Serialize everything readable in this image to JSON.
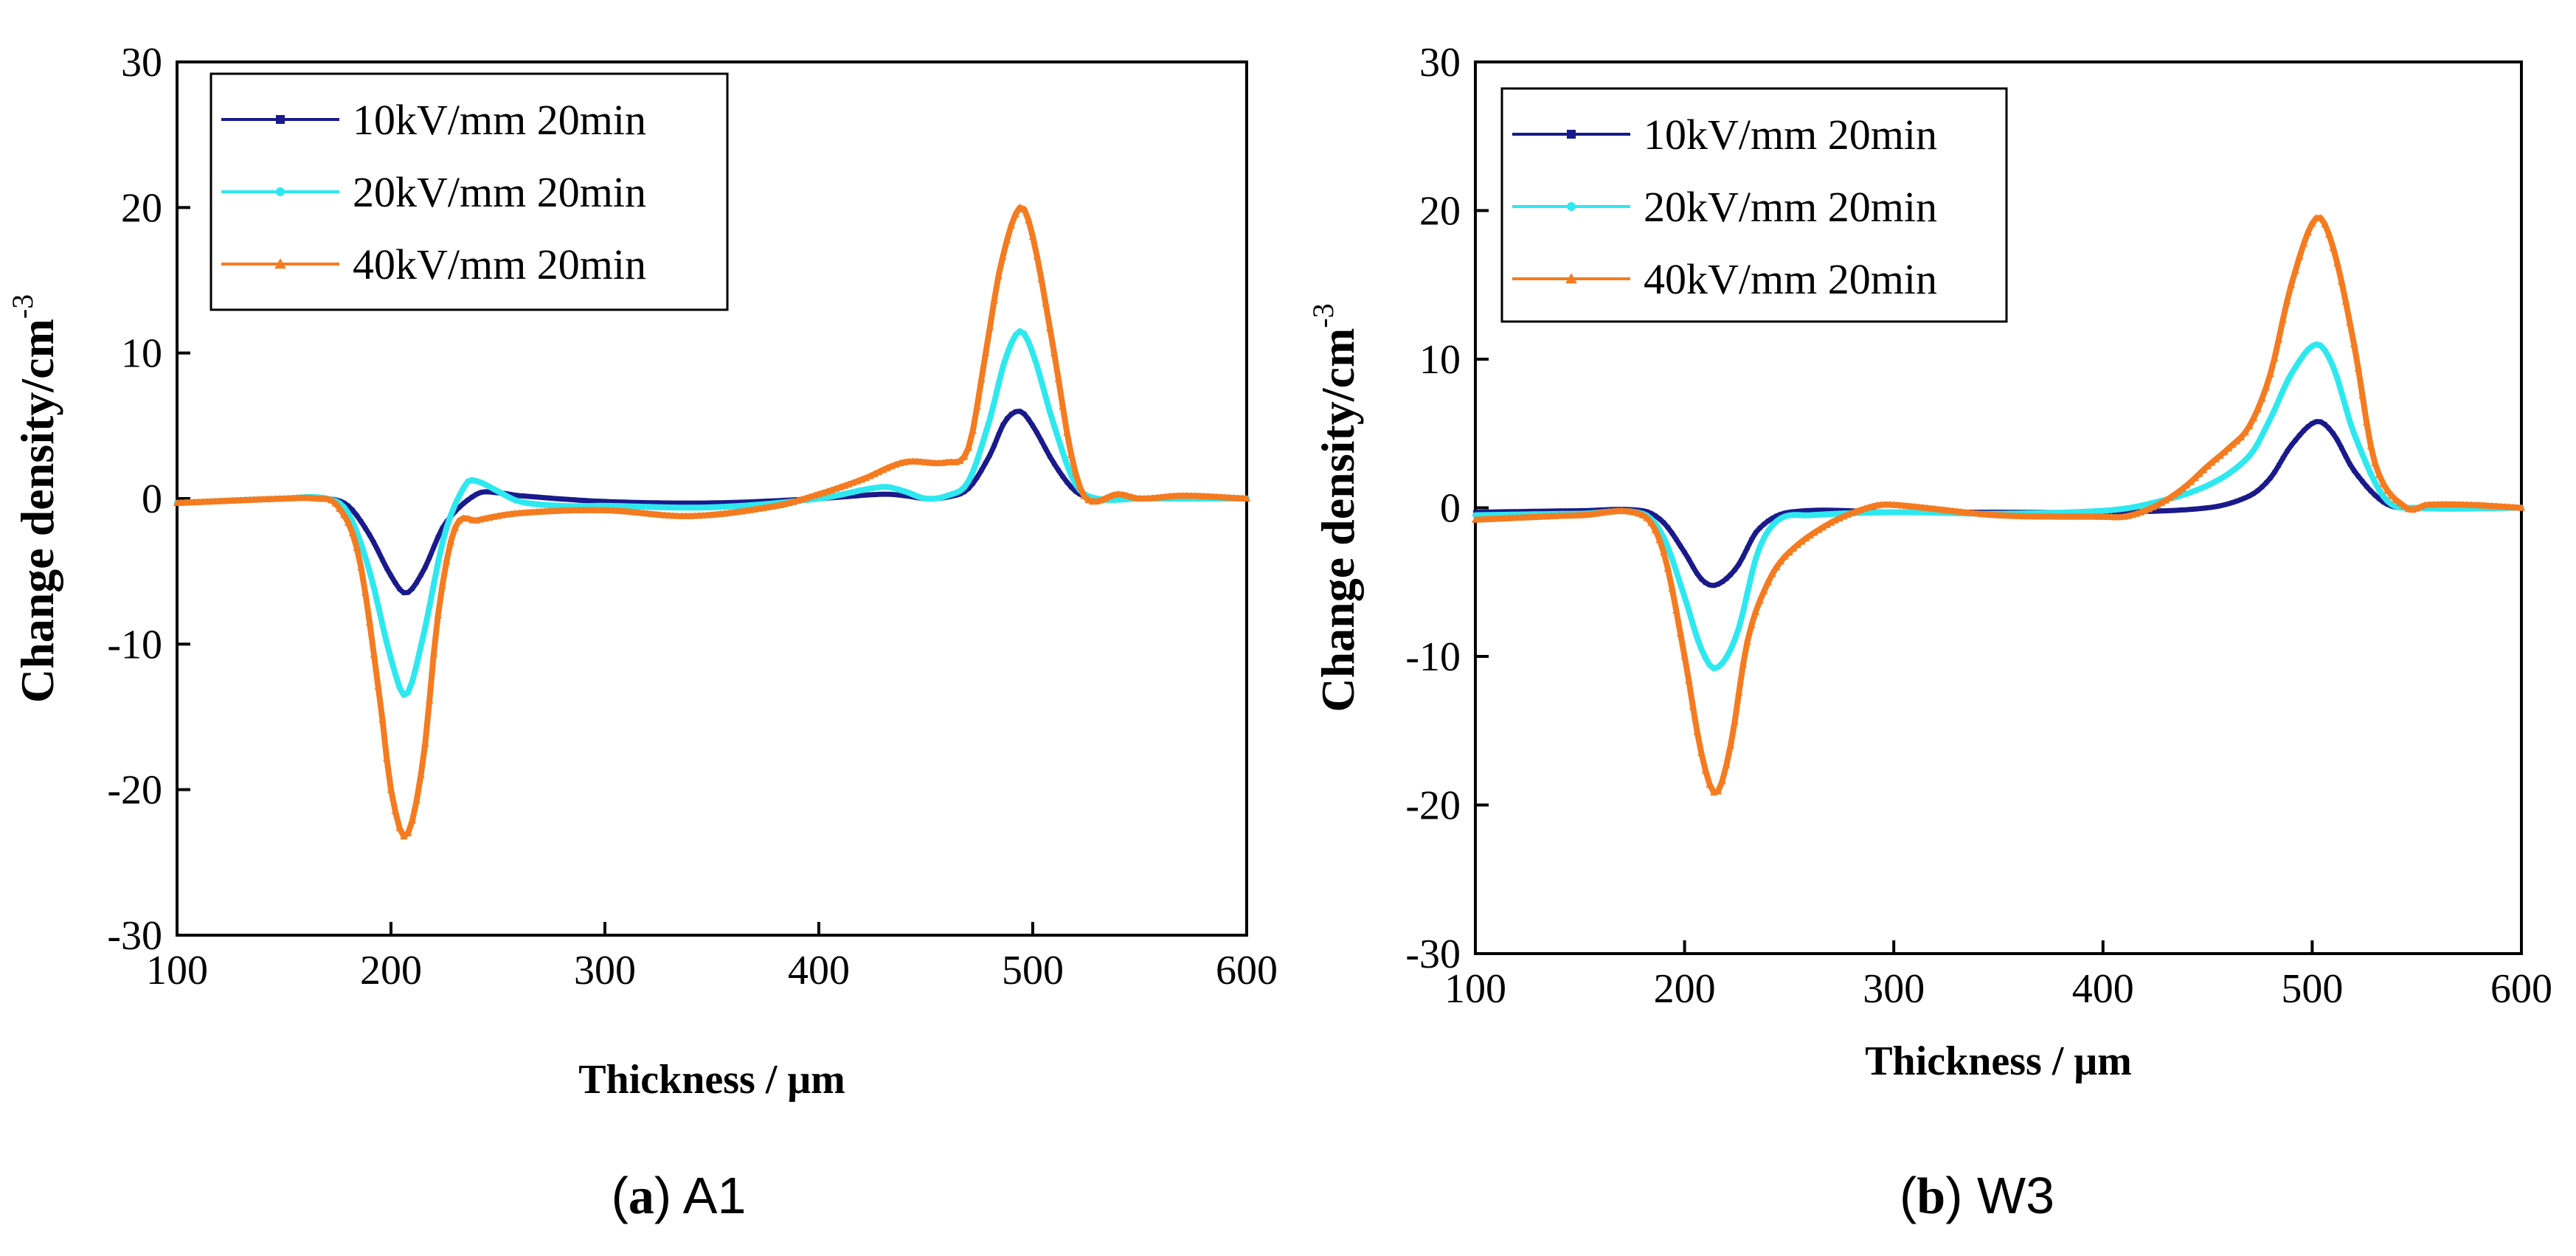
{
  "colors": {
    "series_10": "#1a1a8c",
    "series_20": "#2ee8ef",
    "series_40": "#f47b20",
    "axis": "#000000"
  },
  "chart_data": [
    {
      "type": "line",
      "panel": "a",
      "caption": {
        "label": "a",
        "sample": "A1"
      },
      "xlabel": "Thickness / μm",
      "ylabel": "Change density/cm",
      "ylabel_sup": "-3",
      "xlim": [
        100,
        600
      ],
      "ylim": [
        -30,
        30
      ],
      "xticks": [
        100,
        200,
        300,
        400,
        500,
        600
      ],
      "yticks": [
        -30,
        -20,
        -10,
        0,
        10,
        20,
        30
      ],
      "xtick_labels": [
        "100",
        "200",
        "300",
        "400",
        "500",
        "600"
      ],
      "ytick_labels": [
        "-30",
        "-20",
        "-10",
        "0",
        "10",
        "20",
        "30"
      ],
      "legend_position": "top-left",
      "series": [
        {
          "name": "10kV/mm 20min",
          "color_key": "series_10",
          "marker": "square",
          "x": [
            100,
            150,
            170,
            180,
            190,
            200,
            207,
            215,
            225,
            240,
            250,
            260,
            300,
            350,
            400,
            430,
            440,
            450,
            460,
            470,
            480,
            487,
            494,
            500,
            510,
            520,
            530,
            550,
            600
          ],
          "y": [
            -0.3,
            0,
            0,
            -0.5,
            -2.5,
            -5.3,
            -6.5,
            -5,
            -1.8,
            0.3,
            0.4,
            0.2,
            -0.2,
            -0.3,
            0,
            0.3,
            0.2,
            0,
            0.1,
            0.7,
            3,
            5.3,
            6,
            5,
            2.4,
            0.5,
            0,
            0,
            0
          ]
        },
        {
          "name": "20kV/mm 20min",
          "color_key": "series_20",
          "marker": "circle",
          "x": [
            100,
            150,
            170,
            180,
            190,
            200,
            207,
            215,
            225,
            235,
            240,
            250,
            260,
            280,
            300,
            350,
            400,
            430,
            440,
            450,
            460,
            470,
            480,
            487,
            494,
            500,
            510,
            520,
            530,
            550,
            600
          ],
          "y": [
            -0.3,
            0,
            0,
            -1,
            -5,
            -11,
            -13.5,
            -9.5,
            -2.5,
            1,
            1.2,
            0.5,
            -0.2,
            -0.5,
            -0.5,
            -0.6,
            0,
            0.8,
            0.5,
            0,
            0.2,
            1.2,
            5.5,
            9.5,
            11.5,
            10,
            5,
            1,
            0,
            0,
            0
          ]
        },
        {
          "name": "40kV/mm 20min",
          "color_key": "series_40",
          "marker": "triangle",
          "x": [
            100,
            150,
            165,
            175,
            185,
            195,
            200,
            207,
            215,
            222,
            230,
            240,
            260,
            300,
            340,
            380,
            400,
            420,
            440,
            460,
            470,
            478,
            485,
            494,
            500,
            510,
            518,
            525,
            540,
            550,
            570,
            600
          ],
          "y": [
            -0.3,
            0,
            0,
            -0.5,
            -4,
            -14,
            -20,
            -23.2,
            -18,
            -8,
            -2,
            -1.5,
            -1,
            -0.8,
            -1.2,
            -0.5,
            0.3,
            1.3,
            2.5,
            2.5,
            3.5,
            10,
            16,
            20,
            18,
            10,
            3,
            0,
            0.3,
            0,
            0.2,
            0
          ]
        }
      ]
    },
    {
      "type": "line",
      "panel": "b",
      "caption": {
        "label": "b",
        "sample": "W3"
      },
      "xlabel": "Thickness / μm",
      "ylabel": "Change density/cm",
      "ylabel_sup": "-3",
      "xlim": [
        100,
        600
      ],
      "ylim": [
        -30,
        30
      ],
      "xticks": [
        100,
        200,
        300,
        400,
        500,
        600
      ],
      "yticks": [
        -30,
        -20,
        -10,
        0,
        10,
        20,
        30
      ],
      "xtick_labels": [
        "100",
        "200",
        "300",
        "400",
        "500",
        "600"
      ],
      "ytick_labels": [
        "-30",
        "-20",
        "-10",
        "0",
        "10",
        "20",
        "30"
      ],
      "legend_position": "top-left",
      "series": [
        {
          "name": "10kV/mm 20min",
          "color_key": "series_10",
          "marker": "square",
          "x": [
            100,
            150,
            180,
            190,
            200,
            208,
            215,
            225,
            235,
            250,
            300,
            350,
            400,
            450,
            470,
            480,
            490,
            502,
            510,
            520,
            535,
            550,
            600
          ],
          "y": [
            -0.3,
            -0.2,
            -0.2,
            -1,
            -3,
            -4.8,
            -5.2,
            -4,
            -1.5,
            -0.3,
            -0.3,
            -0.3,
            -0.3,
            0,
            0.8,
            2,
            4.2,
            5.8,
            5,
            2.5,
            0.3,
            0,
            0
          ]
        },
        {
          "name": "20kV/mm 20min",
          "color_key": "series_20",
          "marker": "circle",
          "x": [
            100,
            150,
            180,
            190,
            200,
            208,
            215,
            225,
            235,
            245,
            260,
            300,
            350,
            400,
            420,
            450,
            470,
            480,
            490,
            502,
            510,
            520,
            535,
            550,
            600
          ],
          "y": [
            -0.5,
            -0.4,
            -0.4,
            -2,
            -6,
            -9.5,
            -10.8,
            -8.5,
            -3,
            -0.8,
            -0.5,
            -0.3,
            -0.4,
            -0.2,
            0.2,
            1.5,
            3.5,
            6,
            9,
            11,
            9.5,
            5,
            0.6,
            0,
            0
          ]
        },
        {
          "name": "40kV/mm 20min",
          "color_key": "series_40",
          "marker": "triangle",
          "x": [
            100,
            150,
            180,
            190,
            200,
            208,
            215,
            222,
            230,
            240,
            250,
            270,
            290,
            300,
            350,
            400,
            410,
            420,
            430,
            440,
            450,
            460,
            470,
            480,
            490,
            502,
            510,
            520,
            530,
            545,
            555,
            575,
            600
          ],
          "y": [
            -0.8,
            -0.5,
            -0.5,
            -3,
            -10,
            -16.5,
            -19.2,
            -16,
            -9,
            -5,
            -3,
            -1,
            0.1,
            0.2,
            -0.5,
            -0.6,
            -0.6,
            -0.2,
            0.5,
            1.5,
            2.8,
            4,
            5.5,
            9,
            15,
            19.5,
            17.5,
            11,
            3,
            0,
            0.2,
            0.2,
            0
          ]
        }
      ]
    }
  ]
}
